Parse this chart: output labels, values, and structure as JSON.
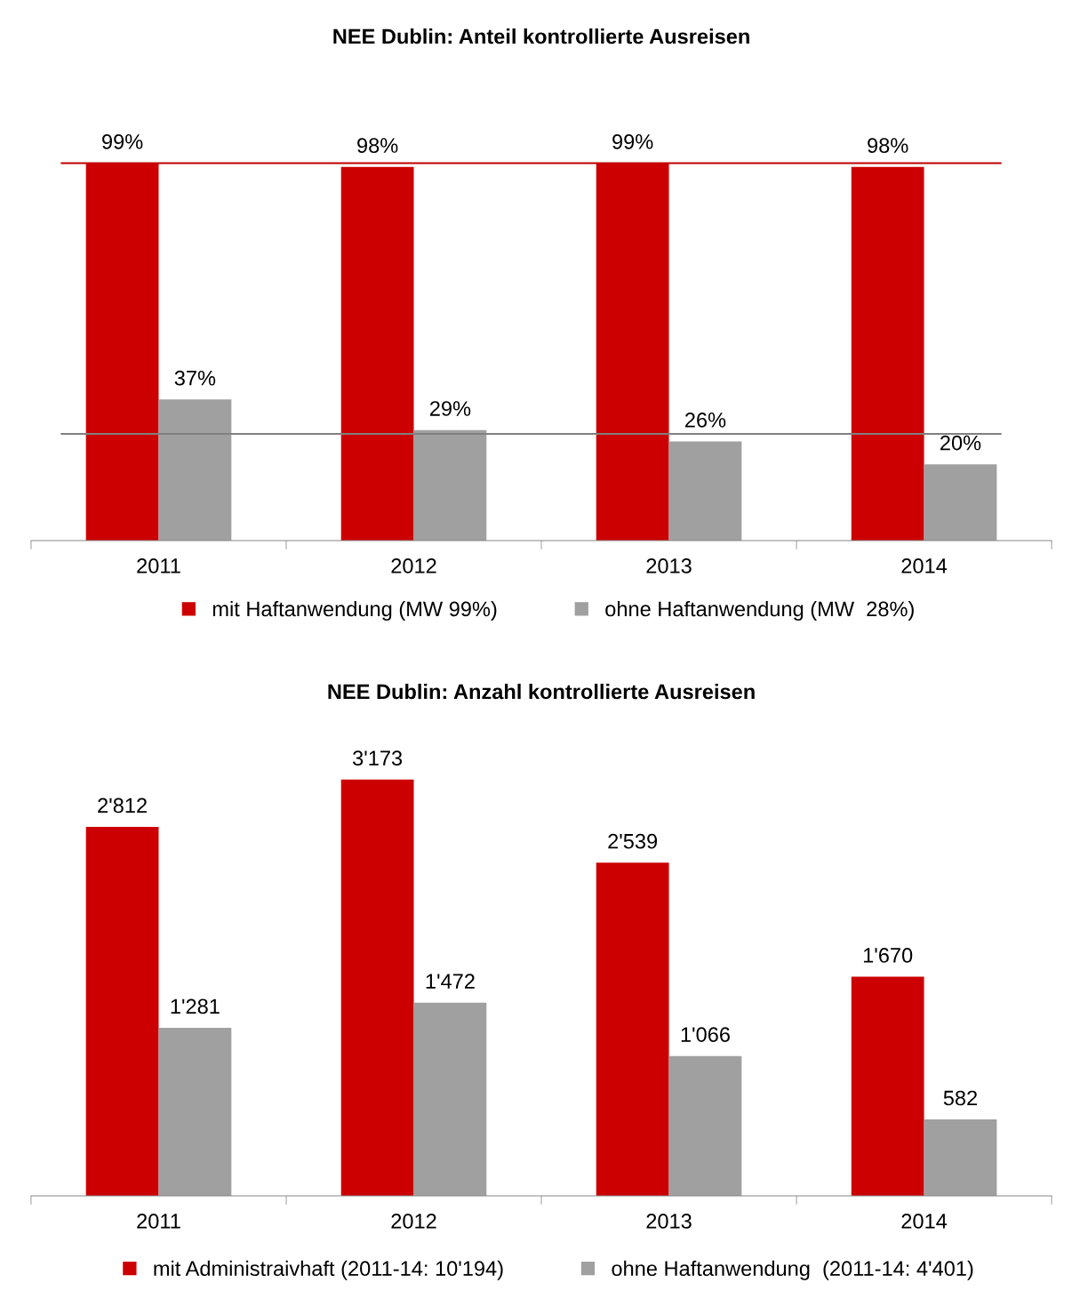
{
  "chart_data": [
    {
      "type": "bar",
      "title": "NEE Dublin: Anteil kontrollierte Ausreisen",
      "categories": [
        "2011",
        "2012",
        "2013",
        "2014"
      ],
      "series": [
        {
          "name": "mit Haftanwendung (MW 99%)",
          "color": "#cc0000",
          "values": [
            99,
            98,
            99,
            98
          ],
          "value_labels": [
            "99%",
            "98%",
            "99%",
            "98%"
          ]
        },
        {
          "name": "ohne Haftanwendung (MW  28%)",
          "color": "#a0a0a0",
          "values": [
            37,
            29,
            26,
            20
          ],
          "value_labels": [
            "37%",
            "29%",
            "26%",
            "20%"
          ]
        }
      ],
      "ref_lines": [
        {
          "axis": "y",
          "value": 99,
          "color": "#c00000"
        },
        {
          "axis": "y",
          "value": 28,
          "color": "#808080"
        }
      ],
      "legend": "bottom",
      "grid": false
    },
    {
      "type": "bar",
      "title": "NEE Dublin: Anzahl kontrollierte Ausreisen",
      "categories": [
        "2011",
        "2012",
        "2013",
        "2014"
      ],
      "series": [
        {
          "name": "mit Administraivhaft (2011-14: 10'194)",
          "color": "#cc0000",
          "values": [
            2812,
            3173,
            2539,
            1670
          ],
          "value_labels": [
            "2'812",
            "3'173",
            "2'539",
            "1'670"
          ]
        },
        {
          "name": "ohne Haftanwendung  (2011-14: 4'401)",
          "color": "#a0a0a0",
          "values": [
            1281,
            1472,
            1066,
            582
          ],
          "value_labels": [
            "1'281",
            "1'472",
            "1'066",
            "582"
          ]
        }
      ],
      "legend": "bottom",
      "grid": false
    }
  ]
}
